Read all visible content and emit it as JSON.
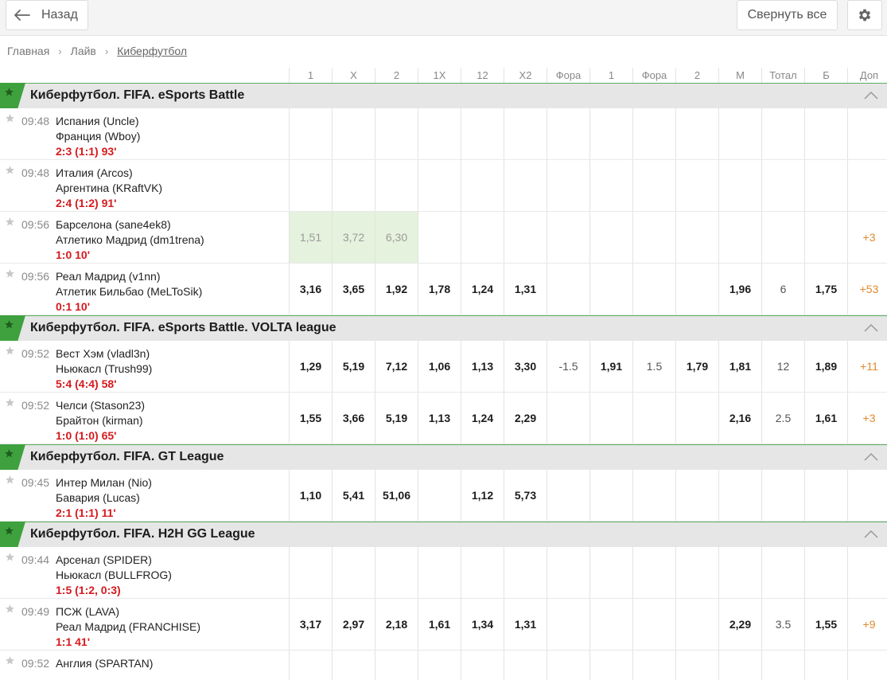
{
  "toolbar": {
    "back_label": "Назад",
    "collapse_label": "Свернуть все"
  },
  "breadcrumb": [
    "Главная",
    "Лайв",
    "Киберфутбол"
  ],
  "columns": [
    "1",
    "X",
    "2",
    "1X",
    "12",
    "X2",
    "Фора",
    "1",
    "Фора",
    "2",
    "М",
    "Тотал",
    "Б",
    "Доп"
  ],
  "leagues": [
    {
      "title": "Киберфутбол. FIFA. eSports Battle",
      "matches": [
        {
          "time": "09:48",
          "team1": "Испания (Uncle)",
          "team2": "Франция (Wboy)",
          "score": "2:3 (1:1) 93'",
          "odds": [
            "",
            "",
            "",
            "",
            "",
            "",
            "",
            "",
            "",
            "",
            "",
            "",
            "",
            ""
          ]
        },
        {
          "time": "09:48",
          "team1": "Италия (Arcos)",
          "team2": "Аргентина (KRaftVK)",
          "score": "2:4 (1:2) 91'",
          "odds": [
            "",
            "",
            "",
            "",
            "",
            "",
            "",
            "",
            "",
            "",
            "",
            "",
            "",
            ""
          ]
        },
        {
          "time": "09:56",
          "team1": "Барселона (sane4ek8)",
          "team2": "Атлетико Мадрид (dm1trena)",
          "score": "1:0 10'",
          "odds": [
            "1,51",
            "3,72",
            "6,30",
            "",
            "",
            "",
            "",
            "",
            "",
            "",
            "",
            "",
            "",
            "+3"
          ],
          "suspended": true
        },
        {
          "time": "09:56",
          "team1": "Реал Мадрид (v1nn)",
          "team2": "Атлетик Бильбао (MeLToSik)",
          "score": "0:1 10'",
          "odds": [
            "3,16",
            "3,65",
            "1,92",
            "1,78",
            "1,24",
            "1,31",
            "",
            "",
            "",
            "",
            "1,96",
            "6",
            "1,75",
            "+53"
          ]
        }
      ]
    },
    {
      "title": "Киберфутбол. FIFA. eSports Battle. VOLTA league",
      "matches": [
        {
          "time": "09:52",
          "team1": "Вест Хэм (vladl3n)",
          "team2": "Ньюкасл (Trush99)",
          "score": "5:4 (4:4) 58'",
          "odds": [
            "1,29",
            "5,19",
            "7,12",
            "1,06",
            "1,13",
            "3,30",
            "-1.5",
            "1,91",
            "1.5",
            "1,79",
            "1,81",
            "12",
            "1,89",
            "+11"
          ]
        },
        {
          "time": "09:52",
          "team1": "Челси (Stason23)",
          "team2": "Брайтон (kirman)",
          "score": "1:0 (1:0) 65'",
          "odds": [
            "1,55",
            "3,66",
            "5,19",
            "1,13",
            "1,24",
            "2,29",
            "",
            "",
            "",
            "",
            "2,16",
            "2.5",
            "1,61",
            "+3"
          ]
        }
      ]
    },
    {
      "title": "Киберфутбол. FIFA. GT League",
      "matches": [
        {
          "time": "09:45",
          "team1": "Интер Милан (Nio)",
          "team2": "Бавария (Lucas)",
          "score": "2:1 (1:1) 11'",
          "odds": [
            "1,10",
            "5,41",
            "51,06",
            "",
            "1,12",
            "5,73",
            "",
            "",
            "",
            "",
            "",
            "",
            "",
            ""
          ]
        }
      ]
    },
    {
      "title": "Киберфутбол. FIFA. H2H GG League",
      "matches": [
        {
          "time": "09:44",
          "team1": "Арсенал (SPIDER)",
          "team2": "Ньюкасл (BULLFROG)",
          "score": "1:5 (1:2, 0:3)",
          "odds": [
            "",
            "",
            "",
            "",
            "",
            "",
            "",
            "",
            "",
            "",
            "",
            "",
            "",
            ""
          ]
        },
        {
          "time": "09:49",
          "team1": "ПСЖ (LAVA)",
          "team2": "Реал Мадрид (FRANCHISE)",
          "score": "1:1 41'",
          "odds": [
            "3,17",
            "2,97",
            "2,18",
            "1,61",
            "1,34",
            "1,31",
            "",
            "",
            "",
            "",
            "2,29",
            "3.5",
            "1,55",
            "+9"
          ]
        },
        {
          "time": "09:52",
          "team1": "Англия (SPARTAN)",
          "team2": "",
          "score": "",
          "odds": [
            "",
            "",
            "",
            "",
            "",
            "",
            "",
            "",
            "",
            "",
            "",
            "",
            "",
            ""
          ]
        }
      ]
    }
  ]
}
